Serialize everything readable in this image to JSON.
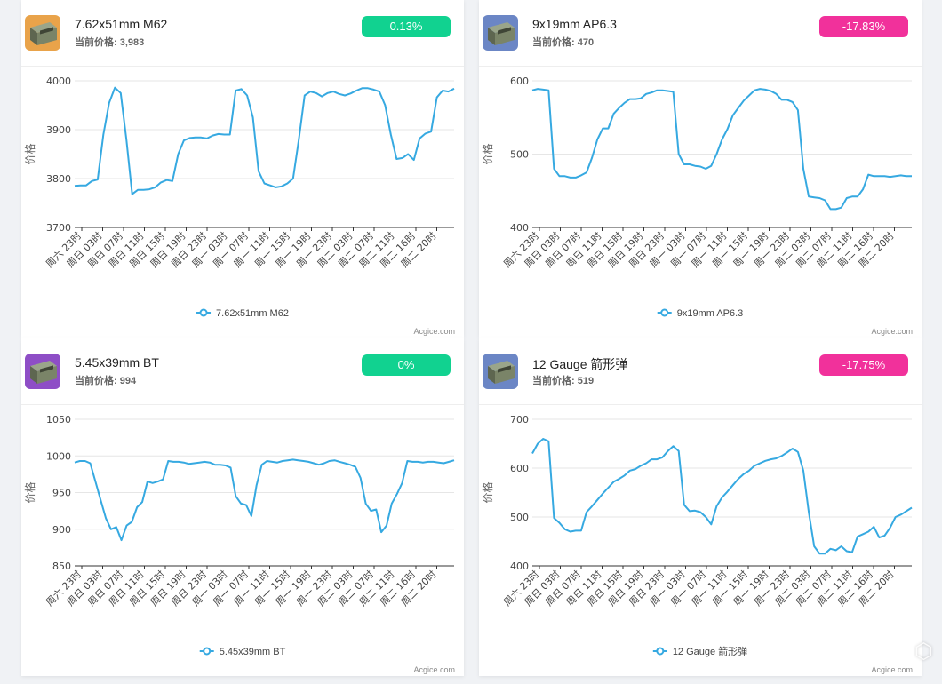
{
  "cards": [
    {
      "name": "7.62x51mm M62",
      "price_label": "当前价格:",
      "price": "3,983",
      "change": "0.13%",
      "change_color": "#11d290",
      "icon_bg": "#e9a34a",
      "icon": "ammo-box-icon",
      "source": "Acgice.com",
      "chart_data": {
        "type": "line",
        "ylabel": "价格",
        "ylim": [
          3700,
          4000
        ],
        "yticks": [
          3700,
          3800,
          3900,
          4000
        ],
        "xticks": [
          "周六 23时",
          "周日 03时",
          "周日 07时",
          "周日 11时",
          "周日 15时",
          "周日 19时",
          "周日 23时",
          "周一 03时",
          "周一 07时",
          "周一 11时",
          "周一 15时",
          "周一 19时",
          "周一 23时",
          "周二 03时",
          "周二 07时",
          "周二 11时",
          "周二 16时",
          "周二 20时"
        ],
        "series": [
          {
            "name": "7.62x51mm M62",
            "color": "#36a9e1",
            "values": [
              3785,
              3786,
              3786,
              3795,
              3798,
              3890,
              3955,
              3986,
              3975,
              3880,
              3768,
              3777,
              3777,
              3778,
              3782,
              3792,
              3797,
              3795,
              3850,
              3878,
              3883,
              3884,
              3884,
              3882,
              3888,
              3891,
              3890,
              3890,
              3980,
              3983,
              3970,
              3925,
              3815,
              3790,
              3786,
              3782,
              3784,
              3790,
              3800,
              3880,
              3970,
              3978,
              3975,
              3968,
              3975,
              3978,
              3973,
              3970,
              3974,
              3980,
              3985,
              3985,
              3982,
              3978,
              3950,
              3890,
              3840,
              3842,
              3850,
              3838,
              3882,
              3892,
              3896,
              3966,
              3980,
              3978,
              3984
            ]
          }
        ]
      }
    },
    {
      "name": "9x19mm AP6.3",
      "price_label": "当前价格:",
      "price": "470",
      "change": "-17.83%",
      "change_color": "#f1319b",
      "icon_bg": "#6b86c5",
      "icon": "ammo-box-icon",
      "source": "Acgice.com",
      "chart_data": {
        "type": "line",
        "ylabel": "价格",
        "ylim": [
          400,
          600
        ],
        "yticks": [
          400,
          500,
          600
        ],
        "xticks": [
          "周六 23时",
          "周日 03时",
          "周日 07时",
          "周日 11时",
          "周日 15时",
          "周日 19时",
          "周日 23时",
          "周一 03时",
          "周一 07时",
          "周一 11时",
          "周一 15时",
          "周一 19时",
          "周一 23时",
          "周二 03时",
          "周二 07时",
          "周二 11时",
          "周二 16时",
          "周二 20时"
        ],
        "series": [
          {
            "name": "9x19mm AP6.3",
            "color": "#36a9e1",
            "values": [
              587,
              589,
              588,
              587,
              480,
              470,
              470,
              468,
              468,
              471,
              475,
              495,
              520,
              535,
              535,
              555,
              563,
              570,
              575,
              575,
              576,
              582,
              584,
              587,
              587,
              586,
              585,
              500,
              486,
              486,
              484,
              483,
              480,
              484,
              500,
              520,
              534,
              553,
              563,
              573,
              580,
              587,
              589,
              588,
              586,
              582,
              574,
              574,
              571,
              560,
              480,
              442,
              441,
              440,
              437,
              425,
              425,
              427,
              440,
              442,
              442,
              452,
              472,
              470,
              470,
              470,
              469,
              470,
              471,
              470,
              470
            ]
          }
        ]
      }
    },
    {
      "name": "5.45x39mm BT",
      "price_label": "当前价格:",
      "price": "994",
      "change": "0%",
      "change_color": "#11d290",
      "icon_bg": "#8e4ec6",
      "icon": "ammo-box-icon",
      "source": "Acgice.com",
      "chart_data": {
        "type": "line",
        "ylabel": "价格",
        "ylim": [
          850,
          1050
        ],
        "yticks": [
          850,
          900,
          950,
          1000,
          1050
        ],
        "xticks": [
          "周六 23时",
          "周日 03时",
          "周日 07时",
          "周日 11时",
          "周日 15时",
          "周日 19时",
          "周日 23时",
          "周一 03时",
          "周一 07时",
          "周一 11时",
          "周一 15时",
          "周一 19时",
          "周一 23时",
          "周二 03时",
          "周二 07时",
          "周二 11时",
          "周二 16时",
          "周二 20时"
        ],
        "series": [
          {
            "name": "5.45x39mm BT",
            "color": "#36a9e1",
            "values": [
              991,
              993,
              993,
              990,
              965,
              940,
              915,
              900,
              903,
              885,
              905,
              910,
              930,
              937,
              965,
              963,
              965,
              968,
              993,
              992,
              992,
              991,
              989,
              990,
              991,
              992,
              991,
              988,
              988,
              987,
              984,
              945,
              935,
              933,
              918,
              960,
              988,
              993,
              992,
              991,
              993,
              994,
              995,
              994,
              993,
              992,
              990,
              988,
              990,
              993,
              994,
              992,
              990,
              988,
              985,
              970,
              935,
              925,
              927,
              896,
              905,
              935,
              948,
              963,
              993,
              992,
              992,
              991,
              992,
              992,
              991,
              990,
              992,
              994
            ]
          }
        ]
      }
    },
    {
      "name": "12 Gauge 箭形弹",
      "price_label": "当前价格:",
      "price": "519",
      "change": "-17.75%",
      "change_color": "#f1319b",
      "icon_bg": "#6b86c5",
      "icon": "ammo-box-icon",
      "source": "Acgice.com",
      "chart_data": {
        "type": "line",
        "ylabel": "价格",
        "ylim": [
          400,
          700
        ],
        "yticks": [
          400,
          500,
          600,
          700
        ],
        "xticks": [
          "周六 23时",
          "周日 03时",
          "周日 07时",
          "周日 11时",
          "周日 15时",
          "周日 19时",
          "周日 23时",
          "周一 03时",
          "周一 07时",
          "周一 11时",
          "周一 15时",
          "周一 19时",
          "周一 23时",
          "周二 03时",
          "周二 07时",
          "周二 11时",
          "周二 16时",
          "周二 20时"
        ],
        "series": [
          {
            "name": "12 Gauge 箭形弹",
            "color": "#36a9e1",
            "values": [
              630,
              650,
              660,
              655,
              498,
              488,
              475,
              470,
              472,
              472,
              510,
              522,
              535,
              548,
              560,
              572,
              578,
              585,
              595,
              598,
              605,
              610,
              618,
              618,
              622,
              635,
              645,
              635,
              525,
              512,
              513,
              510,
              500,
              485,
              522,
              540,
              552,
              565,
              578,
              588,
              595,
              605,
              610,
              615,
              618,
              620,
              625,
              632,
              640,
              633,
              595,
              510,
              440,
              425,
              425,
              435,
              432,
              440,
              430,
              428,
              460,
              465,
              470,
              480,
              458,
              462,
              478,
              500,
              505,
              512,
              519
            ]
          }
        ]
      }
    }
  ]
}
